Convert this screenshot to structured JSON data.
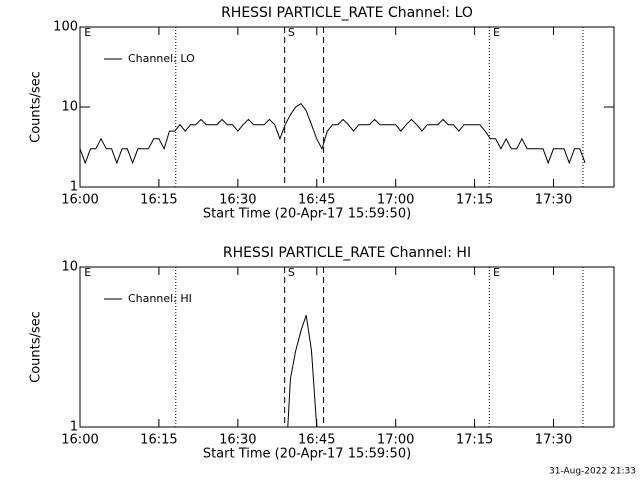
{
  "chart_data": [
    {
      "type": "line",
      "title": "RHESSI PARTICLE_RATE Channel: LO",
      "xlabel": "Start Time (20-Apr-17 15:59:50)",
      "ylabel": "Counts/sec",
      "x": [
        0,
        1,
        2,
        3,
        4,
        5,
        6,
        7,
        8,
        9,
        10,
        11,
        12,
        13,
        14,
        15,
        16,
        17,
        18,
        19,
        20,
        21,
        22,
        23,
        24,
        25,
        26,
        27,
        28,
        29,
        30,
        31,
        32,
        33,
        34,
        35,
        36,
        37,
        38,
        39,
        40,
        41,
        42,
        43,
        44,
        45,
        46,
        47,
        48,
        49,
        50,
        51,
        52,
        53,
        54,
        55,
        56,
        57,
        58,
        59,
        60,
        61,
        62,
        63,
        64,
        65,
        66,
        67,
        68,
        69,
        70,
        71,
        72,
        73,
        74,
        75,
        76,
        77,
        78,
        79,
        80,
        81,
        82,
        83,
        84,
        85,
        86,
        87,
        88,
        89,
        90,
        91,
        92,
        93,
        94,
        95,
        96
      ],
      "series": [
        {
          "name": "Channel: LO",
          "color": "#000000",
          "values": [
            3,
            2,
            3,
            3,
            4,
            3,
            3,
            2,
            3,
            3,
            2,
            3,
            3,
            3,
            4,
            4,
            3,
            5,
            5,
            6,
            5,
            6,
            6,
            7,
            6,
            6,
            6,
            7,
            6,
            6,
            5,
            6,
            7,
            6,
            6,
            6,
            7,
            6,
            4,
            6,
            8,
            10,
            11,
            9,
            6,
            4,
            3,
            5,
            6,
            6,
            7,
            6,
            5,
            6,
            6,
            6,
            7,
            6,
            6,
            6,
            6,
            5,
            6,
            7,
            6,
            5,
            6,
            6,
            6,
            7,
            6,
            6,
            5,
            6,
            6,
            6,
            6,
            5,
            4,
            4,
            3,
            4,
            3,
            3,
            4,
            3,
            3,
            3,
            3,
            2,
            3,
            3,
            3,
            2,
            3,
            3,
            2
          ]
        }
      ],
      "xlim": [
        0,
        101.5
      ],
      "ylim": [
        1,
        100
      ],
      "log_y": true,
      "xticks": [
        {
          "value": 0,
          "label": "16:00"
        },
        {
          "value": 15,
          "label": "16:15"
        },
        {
          "value": 30,
          "label": "16:30"
        },
        {
          "value": 45,
          "label": "16:45"
        },
        {
          "value": 60,
          "label": "17:00"
        },
        {
          "value": 75,
          "label": "17:15"
        },
        {
          "value": 90,
          "label": "17:30"
        }
      ],
      "yticks": [
        1,
        10,
        100
      ],
      "vlines": [
        {
          "x": 18.2,
          "style": "dotted"
        },
        {
          "x": 38.9,
          "style": "dashed"
        },
        {
          "x": 46.3,
          "style": "dashed"
        },
        {
          "x": 77.8,
          "style": "dotted"
        },
        {
          "x": 95.6,
          "style": "dotted"
        }
      ],
      "flags": [
        {
          "x": 0.8,
          "label": "E"
        },
        {
          "x": 39.5,
          "label": "S"
        },
        {
          "x": 78.5,
          "label": "E"
        }
      ]
    },
    {
      "type": "line",
      "title": "RHESSI PARTICLE_RATE Channel: HI",
      "xlabel": "Start Time (20-Apr-17 15:59:50)",
      "ylabel": "Counts/sec",
      "x": [
        39.5,
        40,
        41,
        42,
        43,
        44,
        45
      ],
      "series": [
        {
          "name": "Channel: HI",
          "color": "#000000",
          "values": [
            1,
            2,
            3,
            4,
            5,
            3,
            1
          ]
        }
      ],
      "xlim": [
        0,
        101.5
      ],
      "ylim": [
        1,
        10
      ],
      "log_y": true,
      "xticks": [
        {
          "value": 0,
          "label": "16:00"
        },
        {
          "value": 15,
          "label": "16:15"
        },
        {
          "value": 30,
          "label": "16:30"
        },
        {
          "value": 45,
          "label": "16:45"
        },
        {
          "value": 60,
          "label": "17:00"
        },
        {
          "value": 75,
          "label": "17:15"
        },
        {
          "value": 90,
          "label": "17:30"
        }
      ],
      "yticks": [
        1,
        10
      ],
      "vlines": [
        {
          "x": 18.2,
          "style": "dotted"
        },
        {
          "x": 38.9,
          "style": "dashed"
        },
        {
          "x": 46.3,
          "style": "dashed"
        },
        {
          "x": 77.8,
          "style": "dotted"
        },
        {
          "x": 95.6,
          "style": "dotted"
        }
      ],
      "flags": [
        {
          "x": 0.8,
          "label": "E"
        },
        {
          "x": 39.5,
          "label": "S"
        },
        {
          "x": 78.5,
          "label": "E"
        }
      ]
    }
  ],
  "footer": "31-Aug-2022 21:33"
}
